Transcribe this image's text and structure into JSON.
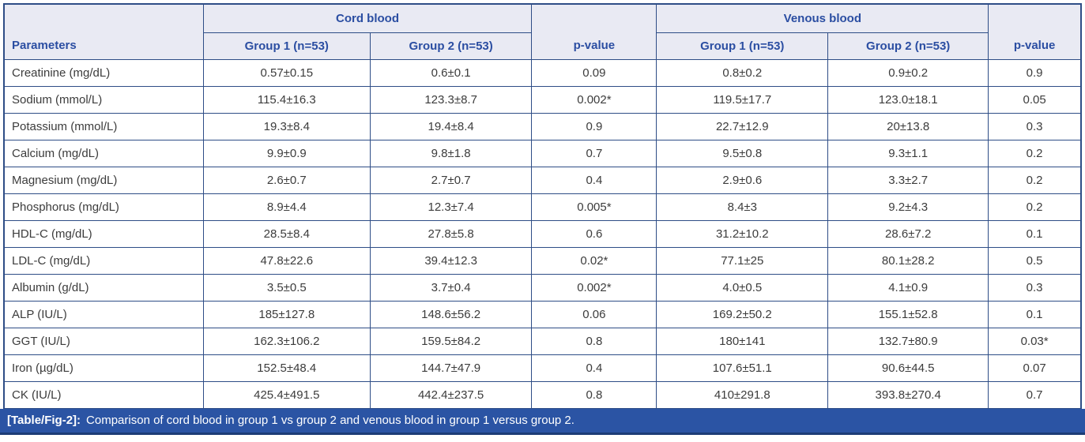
{
  "colors": {
    "border": "#2e4d86",
    "header_bg": "#e9eaf3",
    "header_text": "#2b4ea2",
    "body_text": "#3c3c3c",
    "caption_bg": "#2b54a4",
    "caption_text": "#ffffff"
  },
  "table": {
    "headers": {
      "parameters": "Parameters",
      "cord_blood": "Cord blood",
      "venous_blood": "Venous blood",
      "cord_group1": "Group 1 (n=53)",
      "cord_group2": "Group 2 (n=53)",
      "p_value_cord": "p-value",
      "venous_group1": "Group 1 (n=53)",
      "venous_group2": "Group 2 (n=53)",
      "p_value_venous": "p-value"
    },
    "rows": [
      {
        "parameter": "Creatinine (mg/dL)",
        "cord_g1": "0.57±0.15",
        "cord_g2": "0.6±0.1",
        "cord_p": "0.09",
        "venous_g1": "0.8±0.2",
        "venous_g2": "0.9±0.2",
        "venous_p": "0.9"
      },
      {
        "parameter": "Sodium (mmol/L)",
        "cord_g1": "115.4±16.3",
        "cord_g2": "123.3±8.7",
        "cord_p": "0.002*",
        "venous_g1": "119.5±17.7",
        "venous_g2": "123.0±18.1",
        "venous_p": "0.05"
      },
      {
        "parameter": "Potassium (mmol/L)",
        "cord_g1": "19.3±8.4",
        "cord_g2": "19.4±8.4",
        "cord_p": "0.9",
        "venous_g1": "22.7±12.9",
        "venous_g2": "20±13.8",
        "venous_p": "0.3"
      },
      {
        "parameter": "Calcium (mg/dL)",
        "cord_g1": "9.9±0.9",
        "cord_g2": "9.8±1.8",
        "cord_p": "0.7",
        "venous_g1": "9.5±0.8",
        "venous_g2": "9.3±1.1",
        "venous_p": "0.2"
      },
      {
        "parameter": "Magnesium (mg/dL)",
        "cord_g1": "2.6±0.7",
        "cord_g2": "2.7±0.7",
        "cord_p": "0.4",
        "venous_g1": "2.9±0.6",
        "venous_g2": "3.3±2.7",
        "venous_p": "0.2"
      },
      {
        "parameter": "Phosphorus (mg/dL)",
        "cord_g1": "8.9±4.4",
        "cord_g2": "12.3±7.4",
        "cord_p": "0.005*",
        "venous_g1": "8.4±3",
        "venous_g2": "9.2±4.3",
        "venous_p": "0.2"
      },
      {
        "parameter": "HDL-C (mg/dL)",
        "cord_g1": "28.5±8.4",
        "cord_g2": "27.8±5.8",
        "cord_p": "0.6",
        "venous_g1": "31.2±10.2",
        "venous_g2": "28.6±7.2",
        "venous_p": "0.1"
      },
      {
        "parameter": "LDL-C (mg/dL)",
        "cord_g1": "47.8±22.6",
        "cord_g2": "39.4±12.3",
        "cord_p": "0.02*",
        "venous_g1": "77.1±25",
        "venous_g2": "80.1±28.2",
        "venous_p": "0.5"
      },
      {
        "parameter": "Albumin (g/dL)",
        "cord_g1": "3.5±0.5",
        "cord_g2": "3.7±0.4",
        "cord_p": "0.002*",
        "venous_g1": "4.0±0.5",
        "venous_g2": "4.1±0.9",
        "venous_p": "0.3"
      },
      {
        "parameter": "ALP (IU/L)",
        "cord_g1": "185±127.8",
        "cord_g2": "148.6±56.2",
        "cord_p": "0.06",
        "venous_g1": "169.2±50.2",
        "venous_g2": "155.1±52.8",
        "venous_p": "0.1"
      },
      {
        "parameter": "GGT (IU/L)",
        "cord_g1": "162.3±106.2",
        "cord_g2": "159.5±84.2",
        "cord_p": "0.8",
        "venous_g1": "180±141",
        "venous_g2": "132.7±80.9",
        "venous_p": "0.03*"
      },
      {
        "parameter": "Iron (µg/dL)",
        "cord_g1": "152.5±48.4",
        "cord_g2": "144.7±47.9",
        "cord_p": "0.4",
        "venous_g1": "107.6±51.1",
        "venous_g2": "90.6±44.5",
        "venous_p": "0.07"
      },
      {
        "parameter": "CK (IU/L)",
        "cord_g1": "425.4±491.5",
        "cord_g2": "442.4±237.5",
        "cord_p": "0.8",
        "venous_g1": "410±291.8",
        "venous_g2": "393.8±270.4",
        "venous_p": "0.7"
      }
    ]
  },
  "caption": {
    "label": "[Table/Fig-2]:",
    "text": "Comparison of cord blood in group 1 vs group 2 and venous blood in group 1 versus group 2."
  }
}
